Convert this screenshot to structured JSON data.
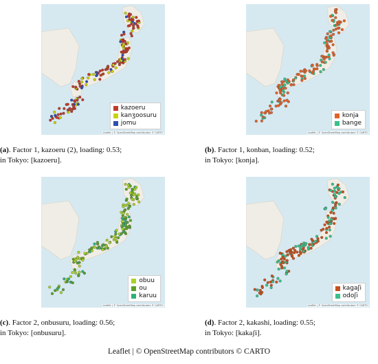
{
  "panels": [
    {
      "id": "a",
      "legend": [
        {
          "label": "kazoeru",
          "color": "#c0392b"
        },
        {
          "label": "kanʒoosuru",
          "color": "#c8d400"
        },
        {
          "label": "jomu",
          "color": "#2f4fb0"
        }
      ],
      "attribution": "Leaflet | © OpenStreetMap contributors © CARTO",
      "caption": {
        "letter": "(a)",
        "line1": ". Factor 1, kazoeru (2), loading: 0.53;",
        "line2": "in Tokyo: [kazoeru]."
      }
    },
    {
      "id": "b",
      "legend": [
        {
          "label": "konja",
          "color": "#e0622a"
        },
        {
          "label": "bange",
          "color": "#3ac08a"
        }
      ],
      "attribution": "Leaflet | © OpenStreetMap contributors © CARTO",
      "caption": {
        "letter": "(b)",
        "line1": ". Factor 1, konban, loading: 0.52;",
        "line2": "in Tokyo: [konja]."
      }
    },
    {
      "id": "c",
      "legend": [
        {
          "label": "obuu",
          "color": "#a8d22a"
        },
        {
          "label": "ou",
          "color": "#5aa02a"
        },
        {
          "label": "karuu",
          "color": "#2fb07a"
        }
      ],
      "attribution": "Leaflet | © OpenStreetMap contributors © CARTO",
      "caption": {
        "letter": "(c)",
        "line1": ". Factor 2, onbusuru, loading: 0.56;",
        "line2": "in Tokyo: [onbusuru]."
      }
    },
    {
      "id": "d",
      "legend": [
        {
          "label": "kagaʃi",
          "color": "#c8501e"
        },
        {
          "label": "odoʃi",
          "color": "#3ac08a"
        }
      ],
      "attribution": "Leaflet | © OpenStreetMap contributors © CARTO",
      "caption": {
        "letter": "(d)",
        "line1": ". Factor 2, kakashi, loading: 0.55;",
        "line2": "in Tokyo: [kakaʃi]."
      }
    }
  ],
  "footer": "Leaflet | © OpenStreetMap contributors © CARTO"
}
